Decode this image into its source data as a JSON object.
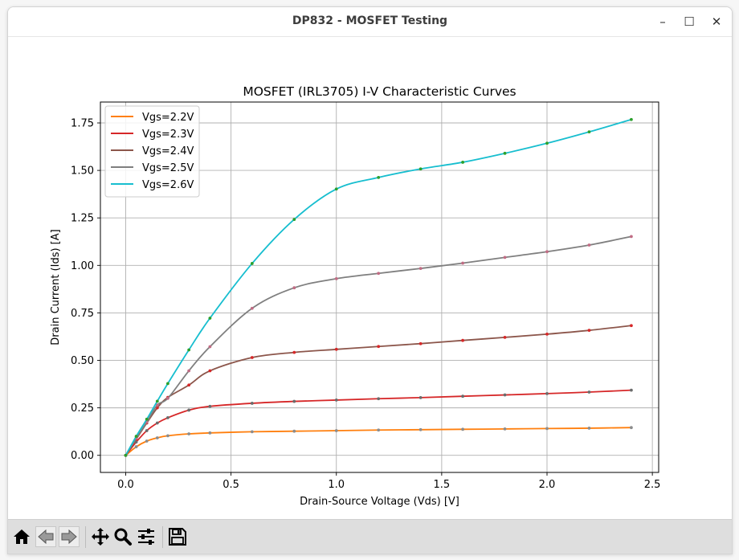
{
  "window": {
    "title": "DP832 - MOSFET Testing",
    "minimize_glyph": "–",
    "maximize_glyph": "☐",
    "close_glyph": "✕"
  },
  "toolbar": {
    "icons": [
      "home-icon",
      "back-arrow-icon",
      "forward-arrow-icon",
      "pan-icon",
      "zoom-icon",
      "configure-subplots-icon",
      "save-icon"
    ]
  },
  "chart_data": {
    "type": "line",
    "title": "MOSFET (IRL3705) I-V Characteristic Curves",
    "xlabel": "Drain-Source Voltage (Vds) [V]",
    "ylabel": "Drain Current (Ids) [A]",
    "xlim": [
      -0.12,
      2.53
    ],
    "ylim": [
      -0.09,
      1.86
    ],
    "xticks": [
      0.0,
      0.5,
      1.0,
      1.5,
      2.0,
      2.5
    ],
    "xtick_labels": [
      "0.0",
      "0.5",
      "1.0",
      "1.5",
      "2.0",
      "2.5"
    ],
    "yticks": [
      0.0,
      0.25,
      0.5,
      0.75,
      1.0,
      1.25,
      1.5,
      1.75
    ],
    "ytick_labels": [
      "0.00",
      "0.25",
      "0.50",
      "0.75",
      "1.00",
      "1.25",
      "1.50",
      "1.75"
    ],
    "grid": true,
    "legend_position": "top-left",
    "x": [
      0.0,
      0.05,
      0.1,
      0.15,
      0.2,
      0.3,
      0.4,
      0.6,
      0.8,
      1.0,
      1.2,
      1.4,
      1.6,
      1.8,
      2.0,
      2.2,
      2.4
    ],
    "series": [
      {
        "name": "Vgs=2.2V",
        "color": "#ff7f0e",
        "marker_color": "#8c8c8c",
        "values": [
          0.0,
          0.045,
          0.075,
          0.092,
          0.103,
          0.113,
          0.118,
          0.124,
          0.127,
          0.13,
          0.133,
          0.135,
          0.137,
          0.139,
          0.141,
          0.143,
          0.146
        ]
      },
      {
        "name": "Vgs=2.3V",
        "color": "#d62728",
        "marker_color": "#6b6b6b",
        "values": [
          0.0,
          0.07,
          0.13,
          0.17,
          0.198,
          0.238,
          0.258,
          0.274,
          0.284,
          0.291,
          0.298,
          0.304,
          0.311,
          0.318,
          0.325,
          0.333,
          0.343
        ]
      },
      {
        "name": "Vgs=2.4V",
        "color": "#8c564b",
        "marker_color": "#d62728",
        "values": [
          0.0,
          0.085,
          0.17,
          0.25,
          0.305,
          0.37,
          0.445,
          0.515,
          0.542,
          0.558,
          0.573,
          0.588,
          0.605,
          0.621,
          0.638,
          0.658,
          0.683
        ]
      },
      {
        "name": "Vgs=2.5V",
        "color": "#7f7f7f",
        "marker_color": "#c06c84",
        "values": [
          0.0,
          0.09,
          0.175,
          0.265,
          0.3,
          0.445,
          0.572,
          0.774,
          0.882,
          0.93,
          0.958,
          0.984,
          1.012,
          1.042,
          1.072,
          1.107,
          1.152
        ]
      },
      {
        "name": "Vgs=2.6V",
        "color": "#17becf",
        "marker_color": "#2ca02c",
        "values": [
          0.0,
          0.1,
          0.19,
          0.285,
          0.378,
          0.555,
          0.722,
          1.01,
          1.242,
          1.402,
          1.463,
          1.508,
          1.543,
          1.59,
          1.643,
          1.703,
          1.768
        ]
      }
    ]
  }
}
